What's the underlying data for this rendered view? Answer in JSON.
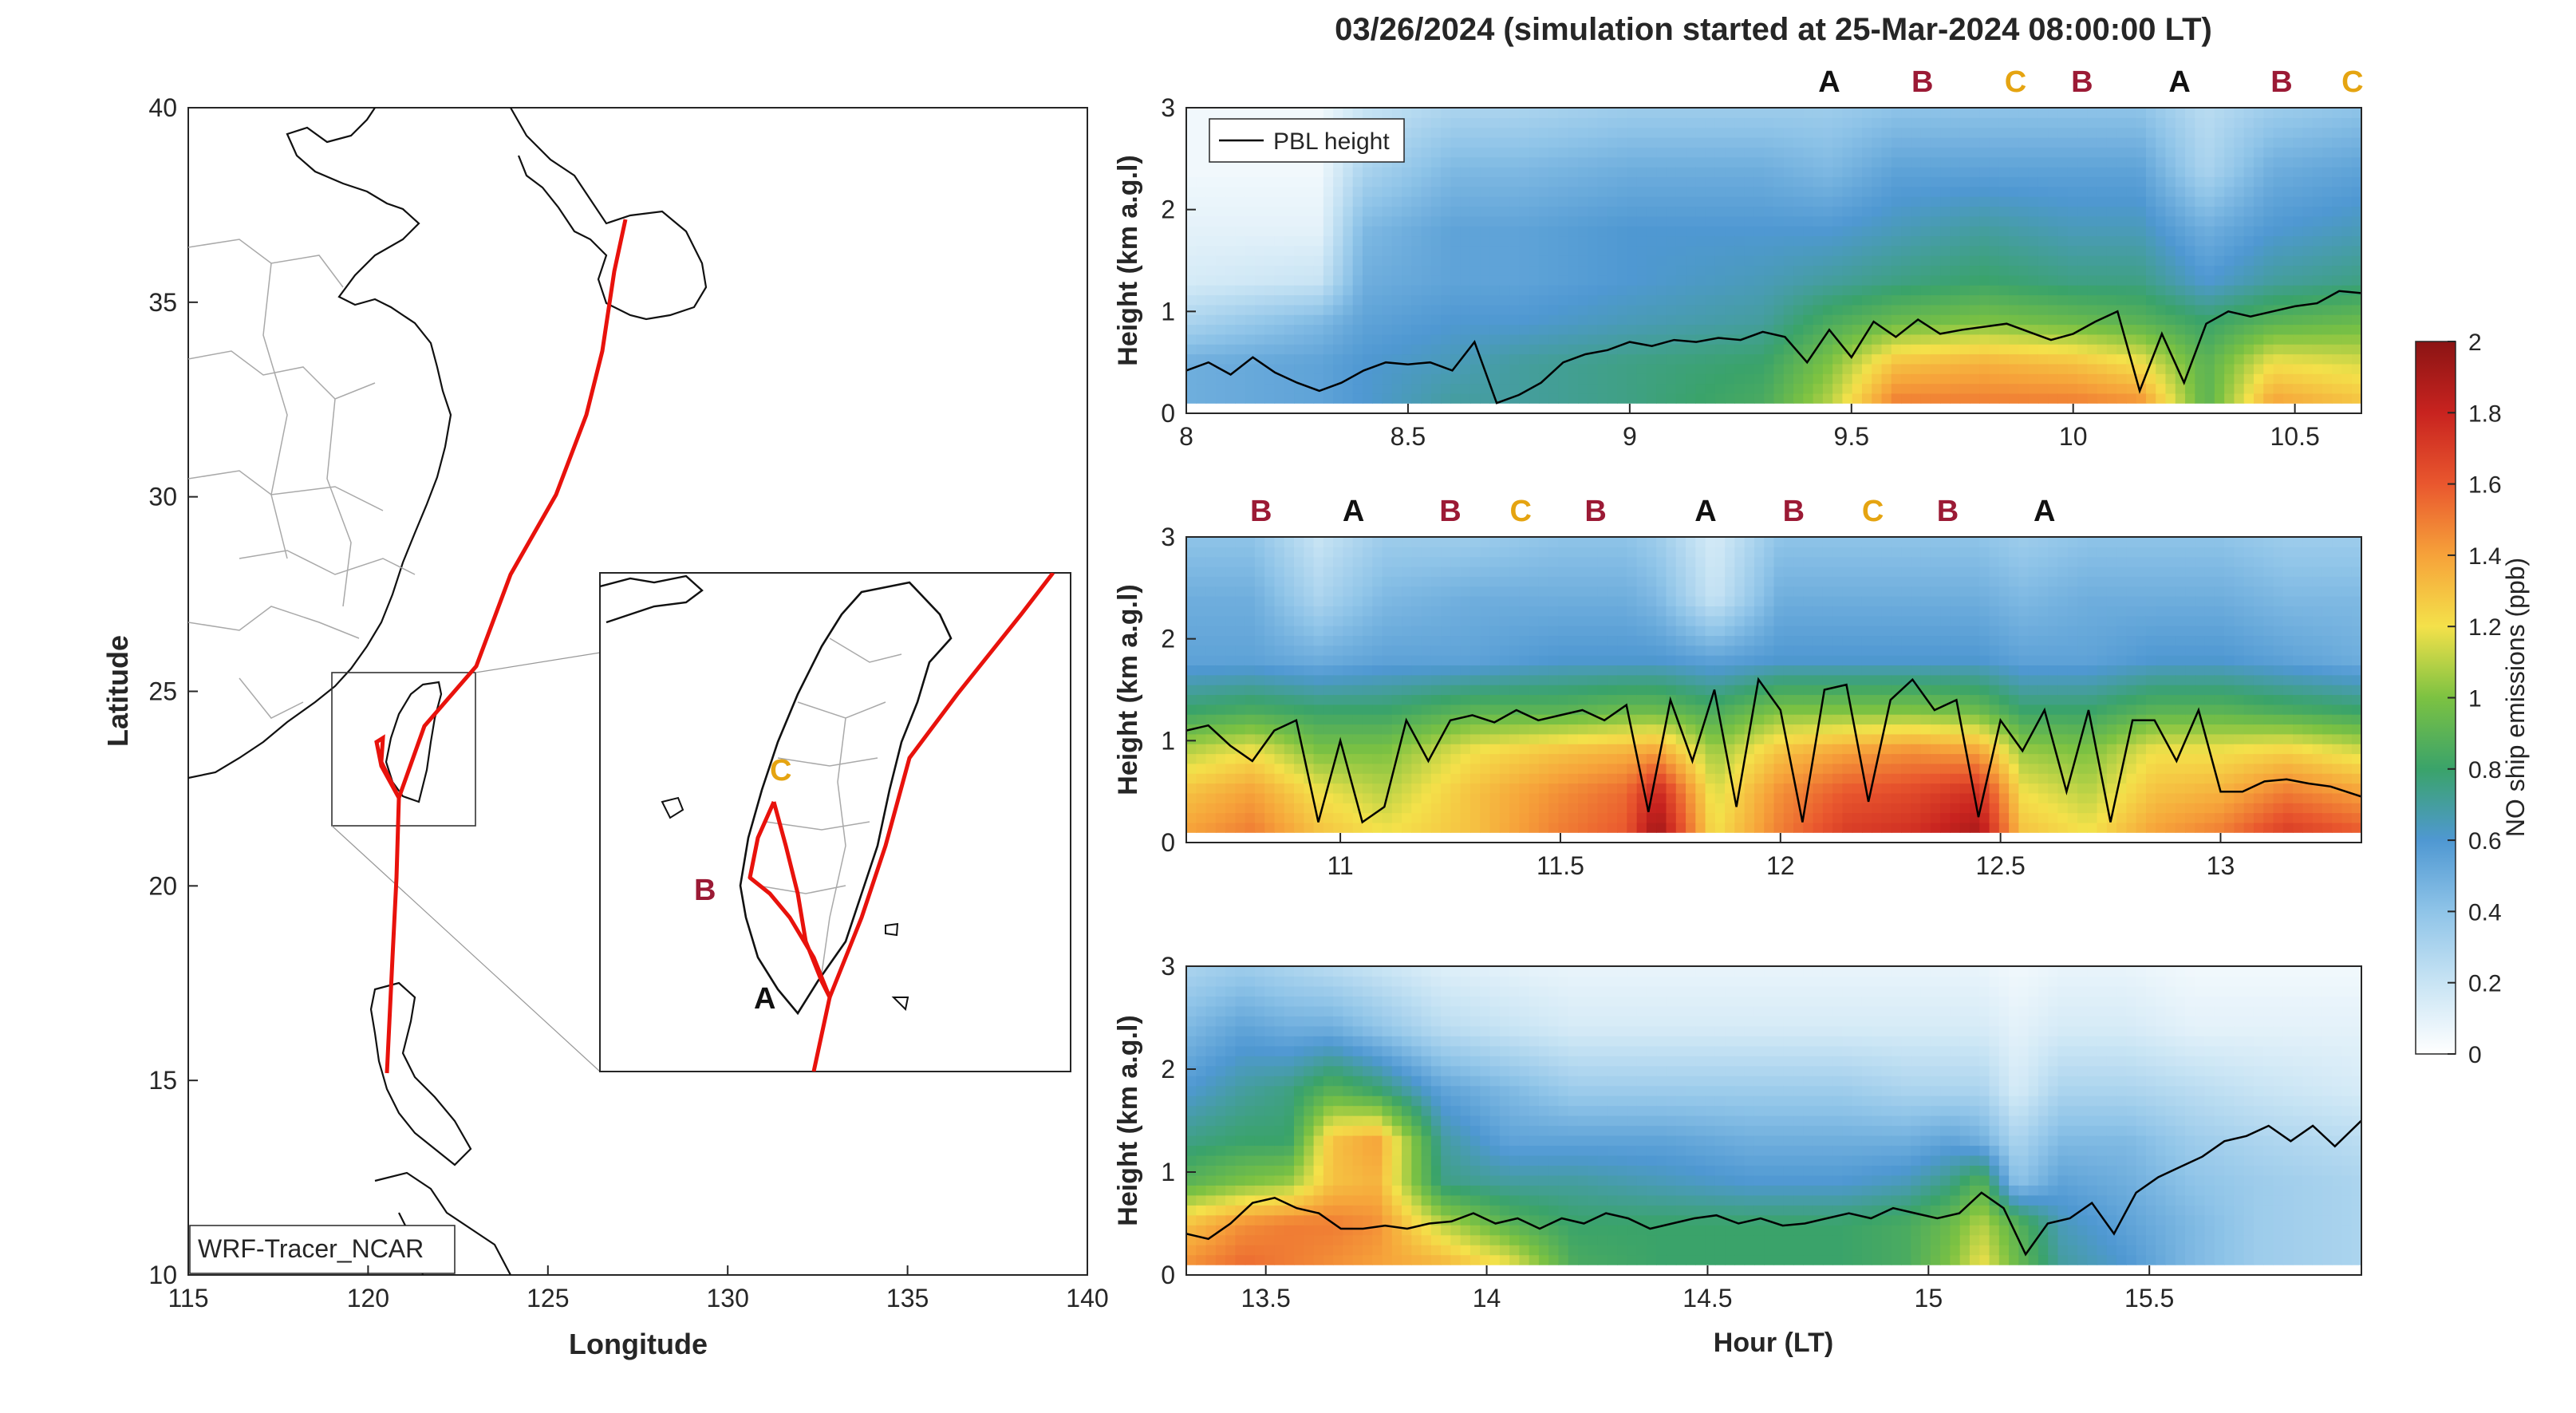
{
  "figure": {
    "title": "03/26/2024 (simulation started at 25-Mar-2024 08:00:00 LT)"
  },
  "map": {
    "xlabel": "Longitude",
    "ylabel": "Latitude",
    "xticks": [
      "115",
      "120",
      "125",
      "130",
      "135",
      "140"
    ],
    "yticks": [
      "10",
      "15",
      "20",
      "25",
      "30",
      "35",
      "40"
    ],
    "xlim": [
      115,
      140
    ],
    "ylim": [
      10,
      40
    ],
    "source_label": "WRF-Tracer_NCAR",
    "track_color": "#e8120c",
    "inset_labels": [
      {
        "text": "C",
        "color": "#e5a411"
      },
      {
        "text": "B",
        "color": "#9b1a35"
      },
      {
        "text": "A",
        "color": "#111111"
      }
    ]
  },
  "colorbar": {
    "label": "NO ship emissions (ppb)",
    "ticks": [
      "0",
      "0.2",
      "0.4",
      "0.6",
      "0.8",
      "1",
      "1.2",
      "1.4",
      "1.6",
      "1.8",
      "2"
    ],
    "range": [
      0,
      2
    ]
  },
  "legend": {
    "label": "PBL height"
  },
  "marker_colors": {
    "A": "#111111",
    "B": "#9b1a35",
    "C": "#e5a411"
  },
  "chart_data": [
    {
      "type": "heatmap",
      "panel": "top",
      "ylabel": "Height (km a.g.l)",
      "xlim": [
        8,
        10.65
      ],
      "ylim": [
        0,
        3
      ],
      "xticks": [
        "8",
        "8.5",
        "9",
        "9.5",
        "10",
        "10.5"
      ],
      "yticks": [
        "0",
        "1",
        "2",
        "3"
      ],
      "markers": [
        {
          "label": "A",
          "x": 9.45
        },
        {
          "label": "B",
          "x": 9.66
        },
        {
          "label": "C",
          "x": 9.87
        },
        {
          "label": "B",
          "x": 10.02
        },
        {
          "label": "A",
          "x": 10.24
        },
        {
          "label": "B",
          "x": 10.47
        },
        {
          "label": "C",
          "x": 10.63
        }
      ],
      "pbl": {
        "x": [
          8.0,
          8.05,
          8.1,
          8.15,
          8.2,
          8.25,
          8.3,
          8.35,
          8.4,
          8.45,
          8.5,
          8.55,
          8.6,
          8.65,
          8.7,
          8.75,
          8.8,
          8.85,
          8.9,
          8.95,
          9.0,
          9.05,
          9.1,
          9.15,
          9.2,
          9.25,
          9.3,
          9.35,
          9.4,
          9.45,
          9.5,
          9.55,
          9.6,
          9.65,
          9.7,
          9.75,
          9.8,
          9.85,
          9.9,
          9.95,
          10.0,
          10.05,
          10.1,
          10.15,
          10.2,
          10.25,
          10.3,
          10.35,
          10.4,
          10.45,
          10.5,
          10.55,
          10.6,
          10.65
        ],
        "y": [
          0.42,
          0.5,
          0.38,
          0.55,
          0.4,
          0.3,
          0.22,
          0.3,
          0.42,
          0.5,
          0.48,
          0.5,
          0.42,
          0.7,
          0.1,
          0.18,
          0.3,
          0.5,
          0.58,
          0.62,
          0.7,
          0.66,
          0.72,
          0.7,
          0.74,
          0.72,
          0.8,
          0.75,
          0.5,
          0.82,
          0.55,
          0.9,
          0.75,
          0.92,
          0.78,
          0.82,
          0.85,
          0.88,
          0.8,
          0.72,
          0.78,
          0.9,
          1.0,
          0.22,
          0.78,
          0.3,
          0.88,
          1.0,
          0.95,
          1.0,
          1.05,
          1.08,
          1.2,
          1.18
        ]
      },
      "field": {
        "x": [
          8.0,
          8.3,
          8.4,
          8.6,
          8.75,
          9.0,
          9.3,
          9.45,
          9.6,
          9.8,
          10.0,
          10.15,
          10.3,
          10.45,
          10.65
        ],
        "y": [
          0.1,
          0.5,
          0.9,
          1.3,
          1.8,
          2.4,
          3.0
        ],
        "z": [
          [
            0.5,
            0.55,
            0.6,
            0.7,
            0.7,
            0.75,
            0.85,
            1.1,
            1.5,
            1.5,
            1.5,
            1.45,
            0.9,
            1.4,
            1.3
          ],
          [
            0.5,
            0.55,
            0.6,
            0.65,
            0.7,
            0.75,
            0.8,
            1.0,
            1.3,
            1.35,
            1.3,
            1.2,
            0.9,
            1.2,
            1.15
          ],
          [
            0.3,
            0.45,
            0.55,
            0.6,
            0.6,
            0.65,
            0.7,
            0.85,
            0.95,
            1.0,
            0.95,
            0.9,
            0.8,
            0.9,
            0.95
          ],
          [
            0.15,
            0.2,
            0.5,
            0.55,
            0.55,
            0.6,
            0.65,
            0.7,
            0.75,
            0.8,
            0.75,
            0.75,
            0.6,
            0.7,
            0.75
          ],
          [
            0.1,
            0.1,
            0.45,
            0.55,
            0.55,
            0.6,
            0.6,
            0.6,
            0.65,
            0.7,
            0.65,
            0.65,
            0.5,
            0.6,
            0.65
          ],
          [
            0.05,
            0.05,
            0.3,
            0.45,
            0.45,
            0.5,
            0.5,
            0.45,
            0.55,
            0.55,
            0.55,
            0.55,
            0.3,
            0.5,
            0.55
          ],
          [
            0.05,
            0.05,
            0.2,
            0.3,
            0.3,
            0.35,
            0.35,
            0.35,
            0.4,
            0.4,
            0.4,
            0.4,
            0.25,
            0.35,
            0.4
          ]
        ]
      }
    },
    {
      "type": "heatmap",
      "panel": "middle",
      "ylabel": "Height (km a.g.l)",
      "xlim": [
        10.65,
        13.32
      ],
      "ylim": [
        0,
        3
      ],
      "xticks": [
        "11",
        "11.5",
        "12",
        "12.5",
        "13"
      ],
      "yticks": [
        "0",
        "1",
        "2",
        "3"
      ],
      "markers": [
        {
          "label": "B",
          "x": 10.82
        },
        {
          "label": "A",
          "x": 11.03
        },
        {
          "label": "B",
          "x": 11.25
        },
        {
          "label": "C",
          "x": 11.41
        },
        {
          "label": "B",
          "x": 11.58
        },
        {
          "label": "A",
          "x": 11.83
        },
        {
          "label": "B",
          "x": 12.03
        },
        {
          "label": "C",
          "x": 12.21
        },
        {
          "label": "B",
          "x": 12.38
        },
        {
          "label": "A",
          "x": 12.6
        }
      ],
      "pbl": {
        "x": [
          10.65,
          10.7,
          10.75,
          10.8,
          10.85,
          10.9,
          10.95,
          11.0,
          11.05,
          11.1,
          11.15,
          11.2,
          11.25,
          11.3,
          11.35,
          11.4,
          11.45,
          11.5,
          11.55,
          11.6,
          11.65,
          11.7,
          11.75,
          11.8,
          11.85,
          11.9,
          11.95,
          12.0,
          12.05,
          12.1,
          12.15,
          12.2,
          12.25,
          12.3,
          12.35,
          12.4,
          12.45,
          12.5,
          12.55,
          12.6,
          12.65,
          12.7,
          12.75,
          12.8,
          12.85,
          12.9,
          12.95,
          13.0,
          13.05,
          13.1,
          13.15,
          13.2,
          13.25,
          13.32
        ],
        "y": [
          1.1,
          1.15,
          0.95,
          0.8,
          1.1,
          1.2,
          0.2,
          1.0,
          0.2,
          0.35,
          1.2,
          0.8,
          1.2,
          1.25,
          1.18,
          1.3,
          1.2,
          1.25,
          1.3,
          1.2,
          1.35,
          0.3,
          1.4,
          0.8,
          1.5,
          0.35,
          1.6,
          1.3,
          0.2,
          1.5,
          1.55,
          0.4,
          1.4,
          1.6,
          1.3,
          1.4,
          0.25,
          1.2,
          0.9,
          1.3,
          0.5,
          1.3,
          0.2,
          1.2,
          1.2,
          0.8,
          1.3,
          0.5,
          0.5,
          0.6,
          0.62,
          0.58,
          0.55,
          0.45
        ]
      },
      "field": {
        "x": [
          10.65,
          10.8,
          10.95,
          11.1,
          11.3,
          11.5,
          11.65,
          11.72,
          11.85,
          12.0,
          12.15,
          12.3,
          12.45,
          12.55,
          12.7,
          12.85,
          13.0,
          13.15,
          13.32
        ],
        "y": [
          0.1,
          0.5,
          0.9,
          1.3,
          1.8,
          2.4,
          3.0
        ],
        "z": [
          [
            1.4,
            1.5,
            1.3,
            1.2,
            1.3,
            1.5,
            1.6,
            1.95,
            1.2,
            1.5,
            1.7,
            1.75,
            1.9,
            1.3,
            1.2,
            1.4,
            1.5,
            1.7,
            1.6
          ],
          [
            1.3,
            1.4,
            1.2,
            1.1,
            1.3,
            1.45,
            1.55,
            1.8,
            1.15,
            1.45,
            1.6,
            1.65,
            1.75,
            1.2,
            1.1,
            1.3,
            1.35,
            1.5,
            1.4
          ],
          [
            1.1,
            1.2,
            1.0,
            1.0,
            1.2,
            1.3,
            1.35,
            1.4,
            1.05,
            1.3,
            1.4,
            1.45,
            1.4,
            1.05,
            1.0,
            1.2,
            1.2,
            1.25,
            1.15
          ],
          [
            0.8,
            0.85,
            0.8,
            0.8,
            0.9,
            0.9,
            0.95,
            0.95,
            0.85,
            1.0,
            1.0,
            1.0,
            0.95,
            0.8,
            0.8,
            0.9,
            0.9,
            0.85,
            0.8
          ],
          [
            0.55,
            0.55,
            0.5,
            0.55,
            0.55,
            0.6,
            0.6,
            0.6,
            0.55,
            0.6,
            0.6,
            0.6,
            0.6,
            0.55,
            0.55,
            0.6,
            0.6,
            0.55,
            0.5
          ],
          [
            0.5,
            0.5,
            0.3,
            0.45,
            0.5,
            0.5,
            0.5,
            0.45,
            0.2,
            0.5,
            0.5,
            0.5,
            0.5,
            0.45,
            0.5,
            0.5,
            0.5,
            0.45,
            0.45
          ],
          [
            0.4,
            0.4,
            0.2,
            0.35,
            0.35,
            0.4,
            0.4,
            0.35,
            0.15,
            0.4,
            0.4,
            0.4,
            0.4,
            0.35,
            0.4,
            0.4,
            0.4,
            0.35,
            0.35
          ]
        ]
      }
    },
    {
      "type": "heatmap",
      "panel": "bottom",
      "ylabel": "Height (km a.g.l)",
      "xlabel": "Hour (LT)",
      "xlim": [
        13.32,
        15.98
      ],
      "ylim": [
        0,
        3
      ],
      "xticks": [
        "13.5",
        "14",
        "14.5",
        "15",
        "15.5"
      ],
      "yticks": [
        "0",
        "1",
        "2",
        "3"
      ],
      "markers": [],
      "pbl": {
        "x": [
          13.32,
          13.37,
          13.42,
          13.47,
          13.52,
          13.57,
          13.62,
          13.67,
          13.72,
          13.77,
          13.82,
          13.87,
          13.92,
          13.97,
          14.02,
          14.07,
          14.12,
          14.17,
          14.22,
          14.27,
          14.32,
          14.37,
          14.42,
          14.47,
          14.52,
          14.57,
          14.62,
          14.67,
          14.72,
          14.77,
          14.82,
          14.87,
          14.92,
          14.97,
          15.02,
          15.07,
          15.12,
          15.17,
          15.22,
          15.27,
          15.32,
          15.37,
          15.42,
          15.47,
          15.52,
          15.57,
          15.62,
          15.67,
          15.72,
          15.77,
          15.82,
          15.87,
          15.92,
          15.98
        ],
        "y": [
          0.4,
          0.35,
          0.5,
          0.7,
          0.75,
          0.65,
          0.6,
          0.45,
          0.45,
          0.48,
          0.45,
          0.5,
          0.52,
          0.6,
          0.5,
          0.55,
          0.45,
          0.55,
          0.5,
          0.6,
          0.55,
          0.45,
          0.5,
          0.55,
          0.58,
          0.5,
          0.55,
          0.48,
          0.5,
          0.55,
          0.6,
          0.55,
          0.65,
          0.6,
          0.55,
          0.6,
          0.8,
          0.65,
          0.2,
          0.5,
          0.55,
          0.7,
          0.4,
          0.8,
          0.95,
          1.05,
          1.15,
          1.3,
          1.35,
          1.45,
          1.3,
          1.45,
          1.25,
          1.5
        ]
      },
      "field": {
        "x": [
          13.32,
          13.45,
          13.55,
          13.65,
          13.75,
          13.9,
          14.05,
          14.2,
          14.4,
          14.6,
          14.8,
          14.95,
          15.05,
          15.12,
          15.2,
          15.3,
          15.45,
          15.6,
          15.75,
          15.98
        ],
        "y": [
          0.1,
          0.5,
          0.9,
          1.3,
          1.8,
          2.4,
          3.0
        ],
        "z": [
          [
            1.45,
            1.55,
            1.5,
            1.45,
            1.4,
            1.35,
            1.2,
            0.85,
            0.8,
            0.8,
            0.8,
            0.85,
            1.0,
            1.2,
            0.95,
            0.7,
            0.6,
            0.45,
            0.35,
            0.3
          ],
          [
            1.3,
            1.45,
            1.5,
            1.5,
            1.45,
            1.1,
            0.9,
            0.8,
            0.8,
            0.8,
            0.8,
            0.85,
            0.95,
            1.1,
            0.9,
            0.65,
            0.55,
            0.45,
            0.35,
            0.3
          ],
          [
            0.9,
            1.0,
            1.05,
            1.3,
            1.35,
            0.75,
            0.7,
            0.7,
            0.65,
            0.6,
            0.6,
            0.65,
            0.75,
            0.9,
            0.4,
            0.55,
            0.5,
            0.4,
            0.35,
            0.3
          ],
          [
            0.75,
            0.8,
            0.8,
            1.3,
            1.4,
            0.7,
            0.55,
            0.55,
            0.55,
            0.5,
            0.5,
            0.5,
            0.55,
            0.5,
            0.3,
            0.45,
            0.45,
            0.35,
            0.3,
            0.25
          ],
          [
            0.6,
            0.7,
            0.75,
            0.9,
            0.8,
            0.55,
            0.45,
            0.35,
            0.35,
            0.35,
            0.35,
            0.3,
            0.3,
            0.3,
            0.15,
            0.3,
            0.3,
            0.25,
            0.2,
            0.15
          ],
          [
            0.45,
            0.55,
            0.5,
            0.5,
            0.4,
            0.25,
            0.2,
            0.15,
            0.15,
            0.15,
            0.15,
            0.15,
            0.15,
            0.15,
            0.1,
            0.15,
            0.15,
            0.1,
            0.1,
            0.1
          ],
          [
            0.3,
            0.35,
            0.3,
            0.25,
            0.2,
            0.12,
            0.1,
            0.08,
            0.08,
            0.08,
            0.08,
            0.08,
            0.08,
            0.08,
            0.05,
            0.08,
            0.08,
            0.05,
            0.05,
            0.05
          ]
        ]
      }
    }
  ]
}
